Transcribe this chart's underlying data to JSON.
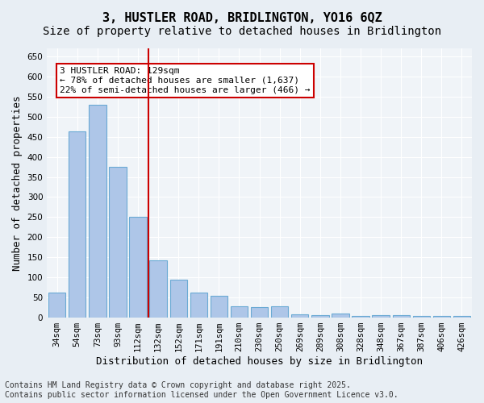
{
  "title": "3, HUSTLER ROAD, BRIDLINGTON, YO16 6QZ",
  "subtitle": "Size of property relative to detached houses in Bridlington",
  "xlabel": "Distribution of detached houses by size in Bridlington",
  "ylabel": "Number of detached properties",
  "categories": [
    "34sqm",
    "54sqm",
    "73sqm",
    "93sqm",
    "112sqm",
    "132sqm",
    "152sqm",
    "171sqm",
    "191sqm",
    "210sqm",
    "230sqm",
    "250sqm",
    "269sqm",
    "289sqm",
    "308sqm",
    "328sqm",
    "348sqm",
    "367sqm",
    "387sqm",
    "406sqm",
    "426sqm"
  ],
  "values": [
    63,
    464,
    530,
    375,
    250,
    143,
    95,
    63,
    55,
    28,
    27,
    28,
    9,
    6,
    10,
    5,
    7,
    6,
    4,
    5,
    4
  ],
  "bar_color": "#aec6e8",
  "bar_edge_color": "#6aaad4",
  "highlight_index": 4,
  "vline_x": 4.5,
  "vline_color": "#cc0000",
  "annotation_text": "3 HUSTLER ROAD: 129sqm\n← 78% of detached houses are smaller (1,637)\n22% of semi-detached houses are larger (466) →",
  "annotation_box_color": "#ffffff",
  "annotation_box_edge": "#cc0000",
  "ylim": [
    0,
    670
  ],
  "yticks": [
    0,
    50,
    100,
    150,
    200,
    250,
    300,
    350,
    400,
    450,
    500,
    550,
    600,
    650
  ],
  "bg_color": "#e8eef4",
  "plot_bg_color": "#f0f4f8",
  "footer_text": "Contains HM Land Registry data © Crown copyright and database right 2025.\nContains public sector information licensed under the Open Government Licence v3.0.",
  "title_fontsize": 11,
  "subtitle_fontsize": 10,
  "axis_label_fontsize": 9,
  "tick_fontsize": 7.5,
  "footer_fontsize": 7
}
